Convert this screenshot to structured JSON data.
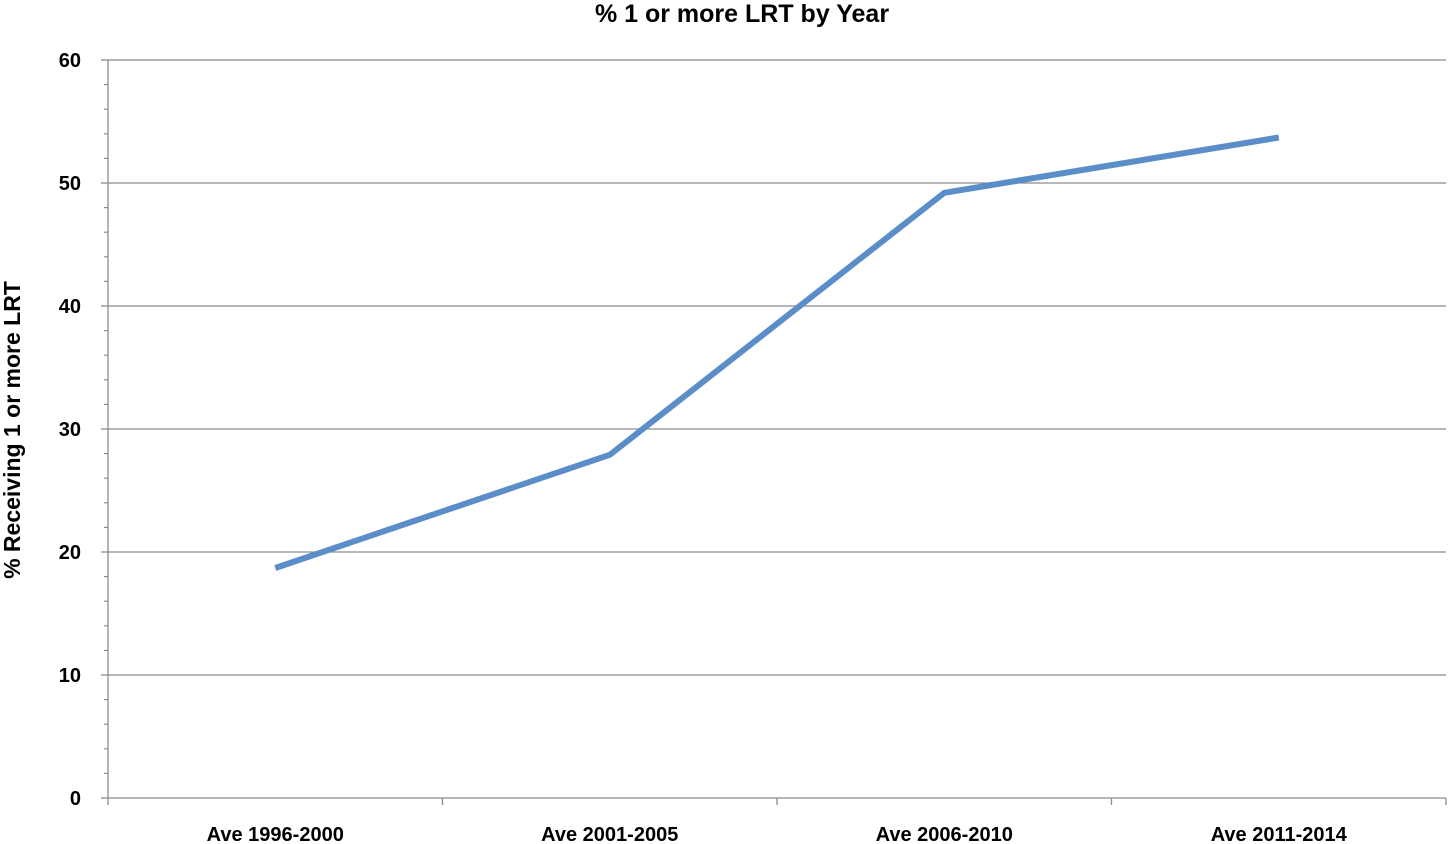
{
  "chart_data": {
    "type": "line",
    "title": "% 1 or more LRT by Year",
    "xlabel": "",
    "ylabel": "% Receiving 1 or more LRT",
    "categories": [
      "Ave 1996-2000",
      "Ave 2001-2005",
      "Ave 2006-2010",
      "Ave 2011-2014"
    ],
    "series": [
      {
        "values": [
          18.7,
          27.9,
          49.2,
          53.7
        ],
        "color": "#5b8ec9"
      }
    ],
    "ylim": [
      0,
      60
    ],
    "yticks": [
      "0",
      "10",
      "20",
      "30",
      "40",
      "50",
      "60"
    ],
    "grid": true,
    "legend": "none"
  }
}
